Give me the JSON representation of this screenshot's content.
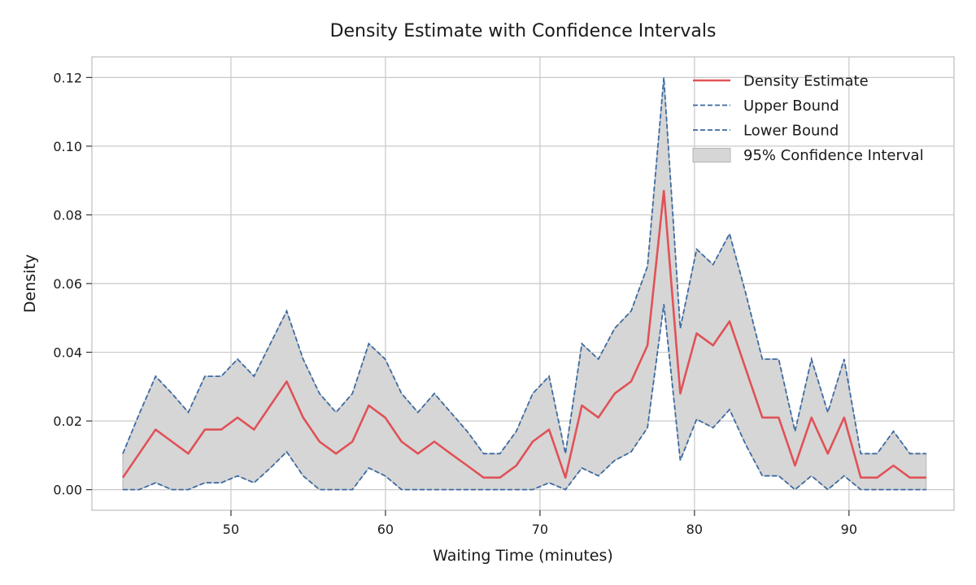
{
  "chart_data": {
    "type": "line",
    "title": "Density Estimate with Confidence Intervals",
    "xlabel": "Waiting Time (minutes)",
    "ylabel": "Density",
    "xlim": [
      41,
      96.8
    ],
    "ylim": [
      -0.006,
      0.126
    ],
    "xticks": [
      50,
      60,
      70,
      80,
      90
    ],
    "xtick_labels": [
      "50",
      "60",
      "70",
      "80",
      "90"
    ],
    "yticks": [
      0.0,
      0.02,
      0.04,
      0.06,
      0.08,
      0.1,
      0.12
    ],
    "ytick_labels": [
      "0.00",
      "0.02",
      "0.04",
      "0.06",
      "0.08",
      "0.10",
      "0.12"
    ],
    "grid": true,
    "legend_position": "top-right",
    "legend": [
      {
        "label": "Density Estimate",
        "kind": "line-solid"
      },
      {
        "label": "Upper Bound",
        "kind": "line-dashed"
      },
      {
        "label": "Lower Bound",
        "kind": "line-dashed"
      },
      {
        "label": "95% Confidence Interval",
        "kind": "patch"
      }
    ],
    "colors": {
      "density": "#e05257",
      "bounds": "#3a6aa3",
      "band": "#d6d6d6",
      "band_edge": "#b5b5b5"
    },
    "x": [
      43.0,
      44.06,
      45.12,
      46.18,
      47.24,
      48.31,
      49.37,
      50.43,
      51.49,
      52.55,
      53.61,
      54.67,
      55.73,
      56.8,
      57.86,
      58.92,
      59.98,
      61.04,
      62.1,
      63.16,
      64.22,
      65.29,
      66.35,
      67.41,
      68.47,
      69.53,
      70.59,
      71.65,
      72.71,
      73.78,
      74.84,
      75.9,
      76.96,
      78.02,
      79.08,
      80.14,
      81.2,
      82.27,
      83.33,
      84.39,
      85.45,
      86.51,
      87.57,
      88.63,
      89.69,
      90.76,
      91.82,
      92.88,
      93.94,
      95.0
    ],
    "series": [
      {
        "name": "Density Estimate",
        "values": [
          0.0035,
          0.0105,
          0.0175,
          0.014,
          0.0105,
          0.0175,
          0.0175,
          0.021,
          0.0175,
          0.0245,
          0.0315,
          0.021,
          0.014,
          0.0105,
          0.014,
          0.0245,
          0.021,
          0.014,
          0.0105,
          0.014,
          0.0105,
          0.007,
          0.0035,
          0.0035,
          0.007,
          0.014,
          0.0175,
          0.0035,
          0.0245,
          0.021,
          0.028,
          0.0315,
          0.042,
          0.087,
          0.028,
          0.0455,
          0.042,
          0.049,
          0.035,
          0.021,
          0.021,
          0.007,
          0.021,
          0.0105,
          0.021,
          0.0035,
          0.0035,
          0.007,
          0.0035,
          0.0035
        ]
      },
      {
        "name": "Upper Bound",
        "values": [
          0.0105,
          0.022,
          0.033,
          0.028,
          0.0225,
          0.033,
          0.033,
          0.038,
          0.033,
          0.0425,
          0.052,
          0.038,
          0.028,
          0.0225,
          0.028,
          0.0425,
          0.038,
          0.028,
          0.0225,
          0.028,
          0.0225,
          0.017,
          0.0105,
          0.0105,
          0.017,
          0.028,
          0.033,
          0.0105,
          0.0425,
          0.038,
          0.047,
          0.052,
          0.065,
          0.12,
          0.047,
          0.07,
          0.0655,
          0.0745,
          0.057,
          0.038,
          0.038,
          0.017,
          0.038,
          0.0225,
          0.038,
          0.0105,
          0.0105,
          0.017,
          0.0105,
          0.0105
        ]
      },
      {
        "name": "Lower Bound",
        "values": [
          0.0,
          0.0,
          0.002,
          0.0,
          0.0,
          0.002,
          0.002,
          0.004,
          0.002,
          0.0063,
          0.011,
          0.004,
          0.0,
          0.0,
          0.0,
          0.0063,
          0.004,
          0.0,
          0.0,
          0.0,
          0.0,
          0.0,
          0.0,
          0.0,
          0.0,
          0.0,
          0.002,
          0.0,
          0.0063,
          0.004,
          0.0085,
          0.011,
          0.018,
          0.054,
          0.0085,
          0.0205,
          0.018,
          0.0233,
          0.013,
          0.004,
          0.004,
          0.0,
          0.004,
          0.0,
          0.004,
          0.0,
          0.0,
          0.0,
          0.0,
          0.0
        ]
      }
    ]
  }
}
